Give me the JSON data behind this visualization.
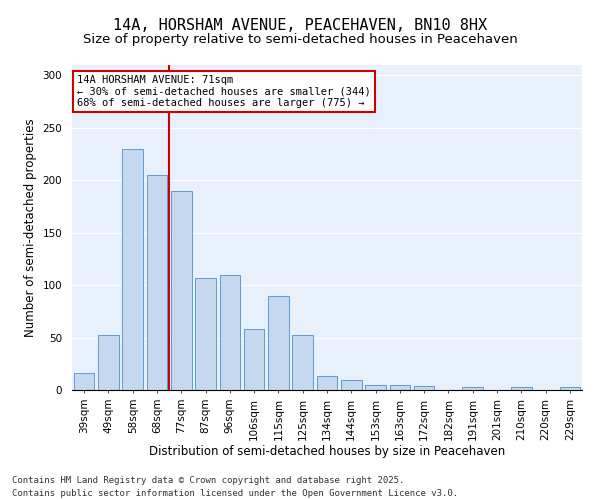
{
  "title_line1": "14A, HORSHAM AVENUE, PEACEHAVEN, BN10 8HX",
  "title_line2": "Size of property relative to semi-detached houses in Peacehaven",
  "xlabel": "Distribution of semi-detached houses by size in Peacehaven",
  "ylabel": "Number of semi-detached properties",
  "categories": [
    "39sqm",
    "49sqm",
    "58sqm",
    "68sqm",
    "77sqm",
    "87sqm",
    "96sqm",
    "106sqm",
    "115sqm",
    "125sqm",
    "134sqm",
    "144sqm",
    "153sqm",
    "163sqm",
    "172sqm",
    "182sqm",
    "191sqm",
    "201sqm",
    "210sqm",
    "220sqm",
    "229sqm"
  ],
  "values": [
    16,
    52,
    230,
    205,
    190,
    107,
    110,
    58,
    90,
    52,
    13,
    10,
    5,
    5,
    4,
    0,
    3,
    0,
    3,
    0,
    3
  ],
  "bar_color": "#c5d8f0",
  "bar_edge_color": "#5b9bd5",
  "background_color": "#e8f0fb",
  "grid_color": "#ffffff",
  "annotation_box_color": "#cc0000",
  "annotation_text": "14A HORSHAM AVENUE: 71sqm\n← 30% of semi-detached houses are smaller (344)\n68% of semi-detached houses are larger (775) →",
  "property_line_color": "#cc0000",
  "ylim": [
    0,
    310
  ],
  "yticks": [
    0,
    50,
    100,
    150,
    200,
    250,
    300
  ],
  "footnote_line1": "Contains HM Land Registry data © Crown copyright and database right 2025.",
  "footnote_line2": "Contains public sector information licensed under the Open Government Licence v3.0.",
  "title_fontsize": 11,
  "subtitle_fontsize": 9.5,
  "axis_label_fontsize": 8.5,
  "tick_fontsize": 7.5,
  "annotation_fontsize": 7.5,
  "footnote_fontsize": 6.5
}
